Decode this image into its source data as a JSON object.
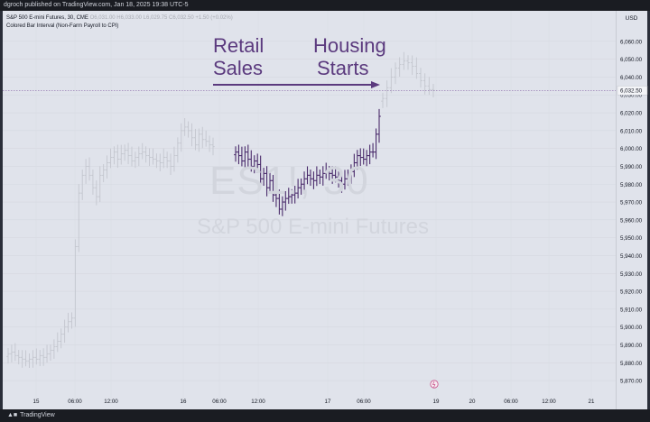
{
  "header": {
    "published_text": "dgroch published on TradingView.com, Jan 18, 2025 19:38 UTC-5"
  },
  "legend": {
    "symbol_line": "S&P 500 E-mini Futures, 30, CME",
    "ohlc": "O6,031.00 H6,033.00 L6,029.75 C6,032.50 +1.50 (+0.02%)",
    "indicator": "Colored Bar Interval (Non-Farm Payroll to CPI)"
  },
  "watermark": {
    "symbol": "ES1!, 30",
    "description": "S&P 500 E-mini Futures"
  },
  "currency_badge": "USD",
  "annotations": {
    "retail_line1": "Retail",
    "retail_line2": "Sales",
    "housing_line1": "Housing",
    "housing_line2": "Starts"
  },
  "footer": {
    "brand": "TradingView"
  },
  "colors": {
    "highlight_bars": "#4a2b6b",
    "faded_bars": "#c3c6ce",
    "annotation": "#5b3a7e",
    "price_line": "#8a6aa8",
    "event_marker": "#c8508a"
  },
  "chart_data": {
    "type": "ohlc",
    "timeframe": "30",
    "y_axis_ticks": [
      5870,
      5880,
      5890,
      5900,
      5910,
      5920,
      5930,
      5940,
      5950,
      5960,
      5970,
      5980,
      5990,
      6000,
      6010,
      6020,
      6030,
      6040,
      6050,
      6060
    ],
    "ylim": [
      5866,
      6068
    ],
    "y_tick_format": "comma_2dec",
    "x_tick_labels": [
      "15",
      "06:00",
      "12:00",
      "16",
      "06:00",
      "12:00",
      "17",
      "06:00",
      "19",
      "20",
      "06:00",
      "12:00",
      "21"
    ],
    "last_price": 6032.5,
    "last_price_label": "6,032.50",
    "highlight_interval": "Non-Farm Payroll to CPI",
    "series": [
      {
        "style": "faded",
        "segment": "before",
        "values": [
          5885,
          5886,
          5884,
          5883,
          5882,
          5881,
          5882,
          5883,
          5882,
          5884,
          5883,
          5885,
          5887,
          5889,
          5892,
          5896,
          5900,
          5903,
          5905,
          5945,
          5975,
          5985,
          5990,
          5985,
          5978,
          5973,
          5985,
          5988,
          5992,
          5995,
          5998,
          5994,
          5997,
          5999,
          5996,
          5993,
          5995,
          5997,
          5998,
          5996,
          5995,
          5994,
          5993,
          5992,
          5995,
          5993,
          5990,
          5996,
          6003,
          6010,
          6012,
          6010,
          6006,
          6002,
          6008,
          6005,
          6004,
          6002,
          6001
        ]
      },
      {
        "style": "highlight",
        "segment": "nfp_to_cpi",
        "values": [
          5998,
          5996,
          5993,
          5998,
          5994,
          5990,
          5993,
          5991,
          5983,
          5986,
          5978,
          5982,
          5974,
          5972,
          5966,
          5970,
          5972,
          5973,
          5974,
          5975,
          5978,
          5980,
          5983,
          5985,
          5983,
          5982,
          5985,
          5984,
          5986,
          5987,
          5986,
          5985,
          5984,
          5982,
          5980,
          5983,
          5985,
          5987,
          5992,
          5996,
          5995,
          5994,
          5996,
          5998,
          5998,
          6008,
          6018
        ]
      },
      {
        "style": "faded",
        "segment": "after",
        "values": [
          6028,
          6034,
          6040,
          6045,
          6047,
          6049,
          6048,
          6046,
          6042,
          6038,
          6035,
          6033,
          6032.5
        ]
      }
    ]
  }
}
